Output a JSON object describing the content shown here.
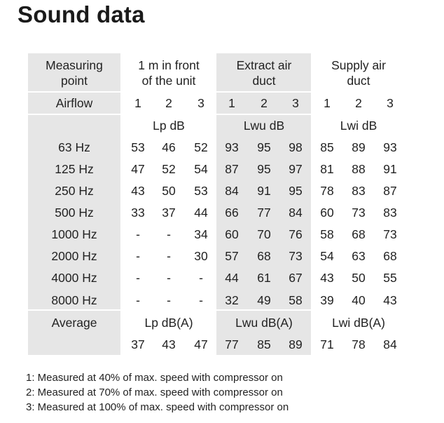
{
  "title": "Sound data",
  "header": {
    "measuring_point": [
      "Measuring",
      "point"
    ],
    "front": [
      "1 m in front",
      "of  the unit"
    ],
    "extract": [
      "Extract air",
      "duct"
    ],
    "supply": [
      "Supply air",
      "duct"
    ]
  },
  "airflow": {
    "label": "Airflow",
    "nums": [
      "1",
      "2",
      "3"
    ]
  },
  "units": {
    "front": "Lp dB",
    "extract": "Lwu dB",
    "supply": "Lwi dB"
  },
  "rows": [
    {
      "freq": "63 Hz",
      "values": [
        "53",
        "46",
        "52",
        "93",
        "95",
        "98",
        "85",
        "89",
        "93"
      ]
    },
    {
      "freq": "125 Hz",
      "values": [
        "47",
        "52",
        "54",
        "87",
        "95",
        "97",
        "81",
        "88",
        "91"
      ]
    },
    {
      "freq": "250 Hz",
      "values": [
        "43",
        "50",
        "53",
        "84",
        "91",
        "95",
        "78",
        "83",
        "87"
      ]
    },
    {
      "freq": "500 Hz",
      "values": [
        "33",
        "37",
        "44",
        "66",
        "77",
        "84",
        "60",
        "73",
        "83"
      ]
    },
    {
      "freq": "1000 Hz",
      "values": [
        "-",
        "-",
        "34",
        "60",
        "70",
        "76",
        "58",
        "68",
        "73"
      ]
    },
    {
      "freq": "2000 Hz",
      "values": [
        "-",
        "-",
        "30",
        "57",
        "68",
        "73",
        "54",
        "63",
        "68"
      ]
    },
    {
      "freq": "4000 Hz",
      "values": [
        "-",
        "-",
        "-",
        "44",
        "61",
        "67",
        "43",
        "50",
        "55"
      ]
    },
    {
      "freq": "8000 Hz",
      "values": [
        "-",
        "-",
        "-",
        "32",
        "49",
        "58",
        "39",
        "40",
        "43"
      ]
    }
  ],
  "average": {
    "label": "Average",
    "units": {
      "front": "Lp dB(A)",
      "extract": "Lwu dB(A)",
      "supply": "Lwi dB(A)"
    },
    "values": [
      "37",
      "43",
      "47",
      "77",
      "85",
      "89",
      "71",
      "78",
      "84"
    ]
  },
  "notes": [
    "1: Measured at 40% of max. speed with compressor on",
    "2: Measured at 70% of max. speed with compressor on",
    "3: Measured at 100% of max. speed with compressor on"
  ],
  "colors": {
    "label_background": "#e6e6e6",
    "text": "#222222",
    "divider": "#ffffff"
  }
}
